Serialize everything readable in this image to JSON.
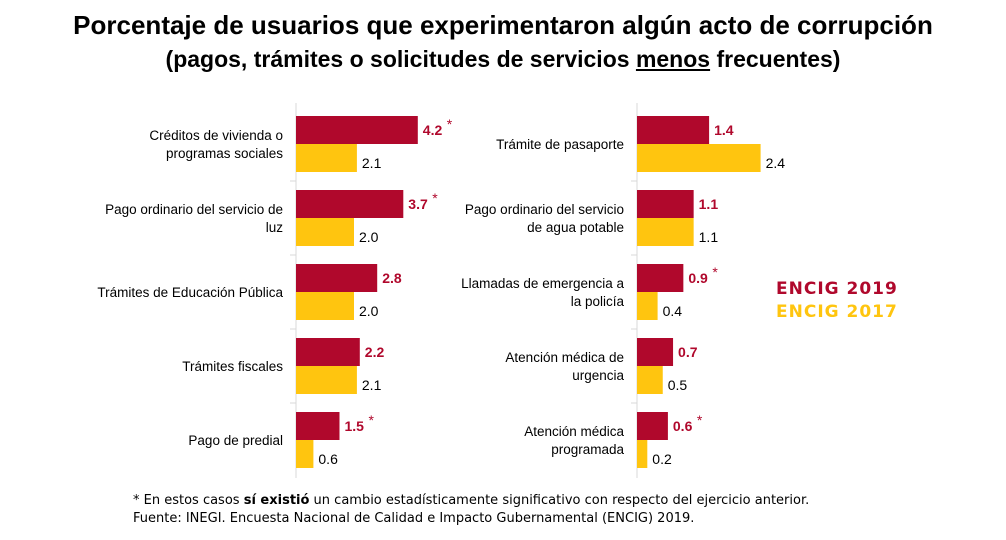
{
  "chart_data": {
    "title": "Porcentaje de usuarios que experimentaron algún acto de corrupción",
    "subtitle_parts": [
      "(pagos, trámites o solicitudes de servicios ",
      "menos",
      " frecuentes)"
    ],
    "colors": {
      "ENCIG 2019": "#b0082c",
      "ENCIG 2017": "#ffc50f"
    },
    "legend": [
      {
        "name": "ENCIG 2019",
        "color": "#b0082c"
      },
      {
        "name": "ENCIG 2017",
        "color": "#ffc50f"
      }
    ],
    "legend_placement": "right",
    "panels": [
      {
        "type": "bar",
        "orientation": "horizontal",
        "categories": [
          "Créditos de vivienda o programas sociales",
          "Pago ordinario del servicio de luz",
          "Trámites de Educación Pública",
          "Trámites fiscales",
          "Pago de predial"
        ],
        "category_lines": [
          [
            "Créditos de vivienda o",
            "programas sociales"
          ],
          [
            "Pago ordinario del servicio de",
            "luz"
          ],
          [
            "Trámites de Educación Pública"
          ],
          [
            "Trámites fiscales"
          ],
          [
            "Pago de predial"
          ]
        ],
        "series": [
          {
            "name": "ENCIG 2019",
            "values": [
              4.2,
              3.7,
              2.8,
              2.2,
              1.5
            ],
            "labels": [
              "4.2",
              "3.7",
              "2.8",
              "2.2",
              "1.5"
            ],
            "significant": [
              true,
              true,
              false,
              false,
              true
            ]
          },
          {
            "name": "ENCIG 2017",
            "values": [
              2.1,
              2.0,
              2.0,
              2.1,
              0.6
            ],
            "labels": [
              "2.1",
              "2.0",
              "2.0",
              "2.1",
              "0.6"
            ]
          }
        ]
      },
      {
        "type": "bar",
        "orientation": "horizontal",
        "categories": [
          "Trámite de pasaporte",
          "Pago ordinario del servicio de agua potable",
          "Llamadas de emergencia a la policía",
          "Atención médica de urgencia",
          "Atención médica programada"
        ],
        "category_lines": [
          [
            "Trámite de pasaporte"
          ],
          [
            "Pago ordinario del servicio",
            "de agua potable"
          ],
          [
            "Llamadas de emergencia a",
            "la policía"
          ],
          [
            "Atención médica de",
            "urgencia"
          ],
          [
            "Atención médica",
            "programada"
          ]
        ],
        "series": [
          {
            "name": "ENCIG 2019",
            "values": [
              1.4,
              1.1,
              0.9,
              0.7,
              0.6
            ],
            "labels": [
              "1.4",
              "1.1",
              "0.9",
              "0.7",
              "0.6"
            ],
            "significant": [
              false,
              false,
              true,
              false,
              true
            ]
          },
          {
            "name": "ENCIG 2017",
            "values": [
              2.4,
              1.1,
              0.4,
              0.5,
              0.2
            ],
            "labels": [
              "2.4",
              "1.1",
              "0.4",
              "0.5",
              "0.2"
            ]
          }
        ]
      }
    ],
    "significance_marker": "*"
  },
  "footer": {
    "note_prefix": "* En estos casos ",
    "note_bold": "sí existió",
    "note_suffix": " un cambio estadísticamente significativo con respecto del ejercicio anterior.",
    "source": "Fuente: INEGI. Encuesta Nacional de Calidad e Impacto Gubernamental (ENCIG) 2019."
  }
}
